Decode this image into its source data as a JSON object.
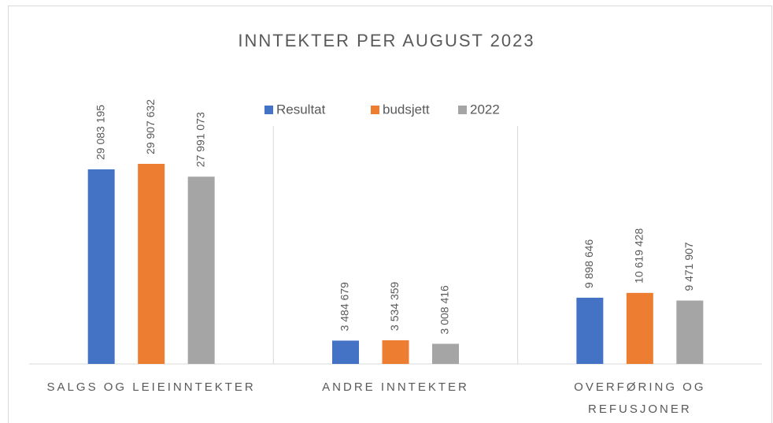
{
  "chart_data": {
    "type": "bar",
    "title": "INNTEKTER PER AUGUST 2023",
    "categories": [
      "SALGS OG LEIEINNTEKTER",
      "ANDRE INNTEKTER",
      "OVERFØRING OG REFUSJONER"
    ],
    "series": [
      {
        "name": "Resultat",
        "color": "#4472c4",
        "values": [
          29083195,
          3484679,
          9898646
        ],
        "value_labels": [
          "29 083 195",
          "3 484 679",
          "9 898 646"
        ]
      },
      {
        "name": "budsjett",
        "color": "#ed7d31",
        "values": [
          29907632,
          3534359,
          10619428
        ],
        "value_labels": [
          "29 907 632",
          "3 534 359",
          "10 619 428"
        ]
      },
      {
        "name": "2022",
        "color": "#a5a5a5",
        "values": [
          27991073,
          3008416,
          9471907
        ],
        "value_labels": [
          "27 991 073",
          "3 008 416",
          "9 471 907"
        ]
      }
    ],
    "legend": "top"
  }
}
